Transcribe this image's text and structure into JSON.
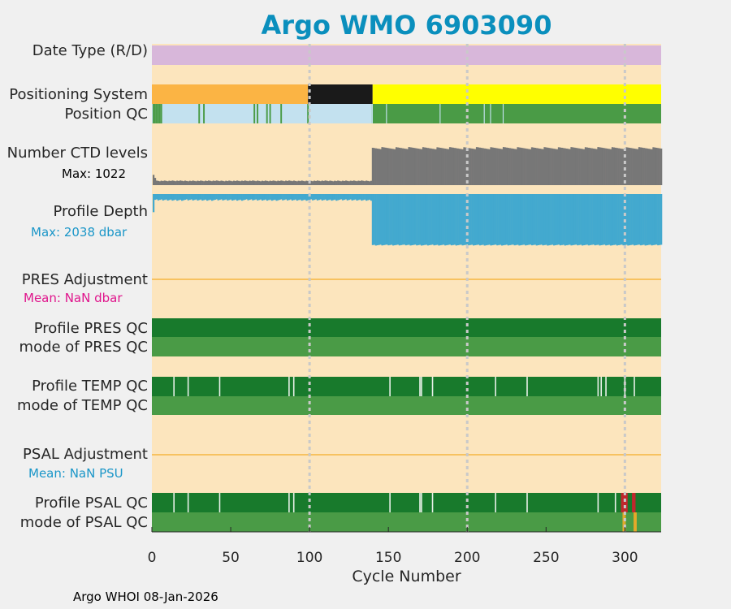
{
  "title": "Argo WMO 6903090",
  "footer": "Argo WHOI 08-Jan-2026",
  "colors": {
    "background": "#fce5bd",
    "date_type": "#d8b7da",
    "pos_orange": "#fbb444",
    "pos_black": "#1a1a1a",
    "pos_yellow": "#ffff00",
    "qc_light_blue": "#c3e1ef",
    "qc_green": "#4a9b46",
    "qc_dark_green": "#187a2c",
    "ctd_gray": "#777777",
    "depth_blue": "#43a9cf",
    "adjust_line": "#f5b642",
    "pres_mean": "#e0158c",
    "psal_mean": "#1a96c8",
    "qc_red": "#c1272d",
    "qc_gold": "#e5a92a",
    "grid": "#c9c9c9"
  },
  "rows": {
    "date_type": "Date Type (R/D)",
    "positioning": "Positioning System",
    "position_qc": "Position QC",
    "ctd_levels": "Number CTD levels",
    "ctd_max": "Max: 1022",
    "profile_depth": "Profile Depth",
    "depth_max": "Max: 2038 dbar",
    "pres_adjust": "PRES Adjustment",
    "pres_mean": "Mean:  NaN dbar",
    "pres_qc": "Profile PRES QC",
    "pres_mode": "mode of PRES QC",
    "temp_qc": "Profile TEMP QC",
    "temp_mode": "mode of TEMP QC",
    "psal_adjust": "PSAL Adjustment",
    "psal_mean": "Mean:  NaN PSU",
    "psal_qc": "Profile PSAL QC",
    "psal_mode": "mode of PSAL QC"
  },
  "chart_data": {
    "type": "area",
    "xlabel": "Cycle Number",
    "xlim": [
      0,
      323
    ],
    "x_ticks": [
      0,
      50,
      100,
      150,
      200,
      250,
      300
    ],
    "x_tick_labels": [
      "0",
      "50",
      "100",
      "150",
      "200",
      "250",
      "300"
    ],
    "grid_x": [
      100,
      200,
      300
    ],
    "positioning_system": [
      {
        "from": 0,
        "to": 99,
        "label": "orange"
      },
      {
        "from": 99,
        "to": 140,
        "label": "black"
      },
      {
        "from": 140,
        "to": 323,
        "label": "yellow"
      }
    ],
    "position_qc_light_until": 140,
    "position_qc_green_cycles": [
      1,
      2,
      3,
      4,
      5,
      6,
      30,
      33,
      65,
      67,
      73,
      75,
      82,
      99,
      140,
      149,
      183,
      211,
      215,
      223
    ],
    "ctd_levels": {
      "max": 1022,
      "low_mean": 100,
      "low_until": 140,
      "high_mean": 940
    },
    "profile_depth": {
      "max_dbar": 2038,
      "low_mean": 200,
      "low_until": 140,
      "high_mean": 1950
    },
    "temp_qc_breaks": [
      14,
      23,
      43,
      87,
      90,
      151,
      170,
      171,
      178,
      218,
      238,
      283,
      285,
      288,
      300,
      306
    ],
    "psal_qc_breaks": [
      14,
      23,
      43,
      87,
      90,
      151,
      170,
      171,
      178,
      218,
      238,
      283,
      294
    ],
    "psal_qc_red_cycles": [
      298,
      299,
      300,
      301,
      305,
      306
    ],
    "psal_mode_gold_cycles": [
      299,
      300,
      306,
      307
    ]
  }
}
